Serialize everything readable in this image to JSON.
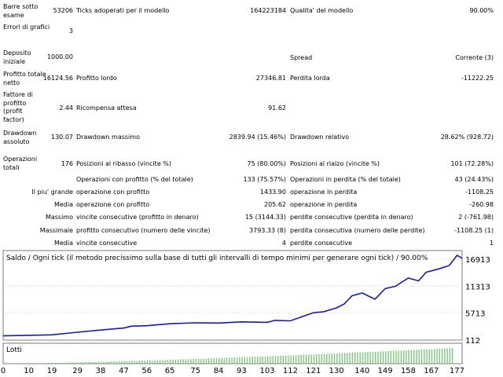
{
  "stats": {
    "barre_label": "Barre sotto esame",
    "barre_value": "53206",
    "ticks_label": "Ticks adoperati per il modello",
    "ticks_value": "164223184",
    "qualita_label": "Qualita' del modello",
    "qualita_value": "90.00%",
    "errori_label": "Errori di grafici",
    "errori_value": "3",
    "deposito_label": "Deposito iniziale",
    "deposito_value": "1000.00",
    "spread_label": "Spread",
    "spread_value": "Corrente (3)",
    "profitto_netto_label": "Profitto totale netto",
    "profitto_netto_value": "16124.56",
    "profitto_lordo_label": "Profitto lordo",
    "profitto_lordo_value": "27346.81",
    "perdita_lorda_label": "Perdita lorda",
    "perdita_lorda_value": "-11222.25",
    "fattore_label": "Fattore di profitto (profit factor)",
    "fattore_value": "2.44",
    "ricompensa_label": "Ricompensa attesa",
    "ricompensa_value": "91.62",
    "dd_assoluto_label": "Drawdown assoluto",
    "dd_assoluto_value": "130.07",
    "dd_massimo_label": "Drawdown massimo",
    "dd_massimo_value": "2839.94 (15.46%)",
    "dd_relativo_label": "Drawdown relativo",
    "dd_relativo_value": "28.62% (928.72)",
    "operazioni_label": "Operazioni totali",
    "operazioni_value": "176",
    "ribasso_label": "Posizioni al ribasso (vincite %)",
    "ribasso_value": "75 (80.00%)",
    "rialzo_label": "Posizioni al rialzo (vincite %)",
    "rialzo_value": "101 (72.28%)",
    "op_profitto_label": "Operazioni con profitto (% del totale)",
    "op_profitto_value": "133 (75.57%)",
    "op_perdita_label": "Operazioni in perdita (% del totale)",
    "op_perdita_value": "43 (24.43%)",
    "piu_grande_label": "Il piu' grande",
    "grande_profitto_label": "operazione con profitto",
    "grande_profitto_value": "1433.90",
    "grande_perdita_label": "operazione in perdita",
    "grande_perdita_value": "-1108.25",
    "media_label": "Media",
    "media_profitto_label": "operazione con profitto",
    "media_profitto_value": "205.62",
    "media_perdita_label": "operazione in perdita",
    "media_perdita_value": "-260.98",
    "massimo_label": "Massimo",
    "massimo_vincite_label": "vincite consecutive (profitto in denaro)",
    "massimo_vincite_value": "15 (3144.33)",
    "massimo_perdite_label": "perdite consecutive (perdita in denaro)",
    "massimo_perdite_value": "2 (-761.98)",
    "massimale_label": "Massimale",
    "massimale_profitto_label": "profitto consecutivo (numero delle vincite)",
    "massimale_profitto_value": "3793.33 (8)",
    "massimale_perdita_label": "perdita consecutiva (numero delle perdite)",
    "massimale_perdita_value": "-1108.25 (1)",
    "media2_label": "Media",
    "media_vincite_label": "vincite consecutive",
    "media_vincite_value": "4",
    "media_perdite_label": "perdite consecutive",
    "media_perdite_value": "1"
  },
  "chart": {
    "title": "Saldo / Ogni tick (il metodo precissimo sulla base di tutti gli intervalli di tempo minimi per generare ogni tick) / 90.00%",
    "lots_label": "Lotti",
    "y_ticks": [
      "16913",
      "11313",
      "5713",
      "112"
    ],
    "x_ticks": [
      "0",
      "10",
      "19",
      "29",
      "38",
      "47",
      "56",
      "65",
      "75",
      "84",
      "93",
      "103",
      "112",
      "121",
      "130",
      "140",
      "149",
      "158",
      "167",
      "177"
    ],
    "colors": {
      "balance": "#1a1aa6",
      "lots": "#7ec87e",
      "grid": "#bbbbbb",
      "border": "#777777"
    }
  },
  "chart_data": {
    "type": "line",
    "title": "Saldo / Ogni tick (il metodo precissimo sulla base di tutti gli intervalli di tempo minimi per generare ogni tick) / 90.00%",
    "xlabel": "",
    "ylabel": "",
    "xlim": [
      0,
      179
    ],
    "ylim": [
      112,
      18700
    ],
    "series": [
      {
        "values": [
          [
            0,
            1000
          ],
          [
            10,
            1100
          ],
          [
            19,
            1200
          ],
          [
            29,
            1750
          ],
          [
            38,
            2200
          ],
          [
            47,
            2600
          ],
          [
            50,
            3000
          ],
          [
            56,
            3100
          ],
          [
            65,
            3500
          ],
          [
            75,
            3700
          ],
          [
            84,
            3650
          ],
          [
            93,
            3900
          ],
          [
            103,
            3800
          ],
          [
            106,
            4200
          ],
          [
            112,
            4100
          ],
          [
            121,
            5800
          ],
          [
            125,
            6000
          ],
          [
            130,
            6800
          ],
          [
            133,
            7600
          ],
          [
            136,
            9300
          ],
          [
            140,
            9900
          ],
          [
            145,
            8600
          ],
          [
            149,
            10800
          ],
          [
            153,
            11300
          ],
          [
            158,
            13000
          ],
          [
            162,
            12400
          ],
          [
            165,
            14200
          ],
          [
            170,
            14900
          ],
          [
            174,
            15600
          ],
          [
            177,
            17700
          ],
          [
            179,
            17100
          ]
        ]
      }
    ],
    "lots": {
      "type": "bar",
      "x_range": [
        0,
        177
      ],
      "value_range": [
        0.01,
        1.0
      ]
    }
  }
}
